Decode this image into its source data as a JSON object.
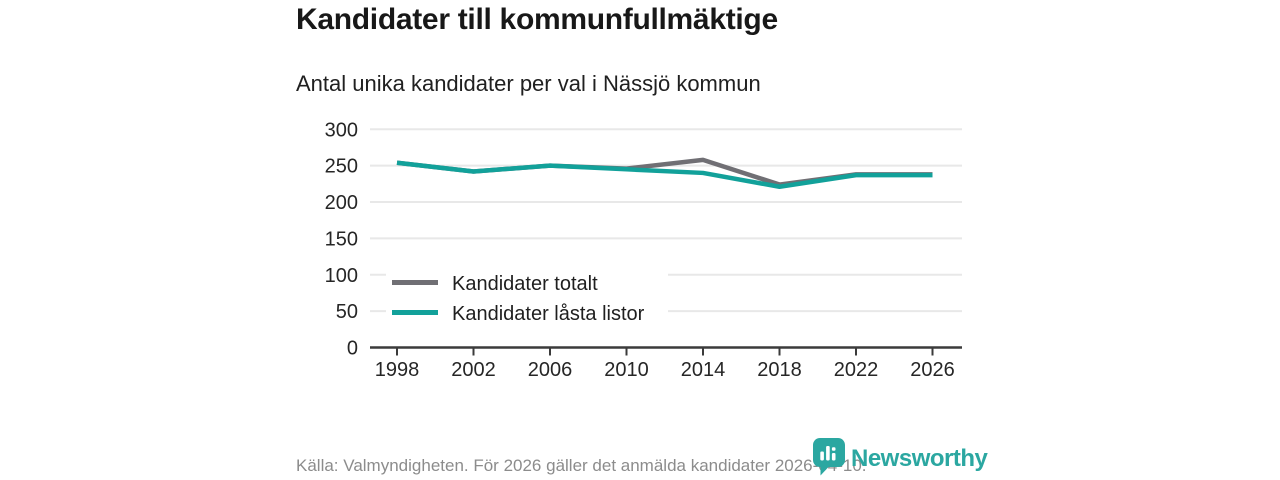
{
  "chart_data": {
    "type": "line",
    "title": "Kandidater till kommunfullmäktige",
    "subtitle": "Antal unika kandidater per val i Nässjö kommun",
    "categories": [
      "1998",
      "2002",
      "2006",
      "2010",
      "2014",
      "2018",
      "2022",
      "2026"
    ],
    "series": [
      {
        "name": "Kandidater totalt",
        "color": "#706f74",
        "values": [
          254,
          242,
          250,
          246,
          258,
          224,
          238,
          238
        ]
      },
      {
        "name": "Kandidater låsta listor",
        "color": "#12a19a",
        "values": [
          254,
          242,
          250,
          245,
          240,
          221,
          237,
          237
        ]
      }
    ],
    "ylim": [
      0,
      300
    ],
    "y_ticks": [
      0,
      50,
      100,
      150,
      200,
      250,
      300
    ],
    "grid": "horizontal",
    "legend_position": "inside-left"
  },
  "footer": {
    "source_text": "Källa: Valmyndigheten. För 2026 gäller det anmälda kandidater 2026-04-10.",
    "logo": {
      "text": "Newsworthy",
      "icon": "speech-bubble-bar-chart",
      "color": "#2ba7a1"
    }
  },
  "colors": {
    "grid": "#e8e8e8",
    "axis": "#3b3b3b",
    "tick_label": "#262626",
    "legend_text": "#1f1f1f",
    "legend_background": "#ffffff"
  }
}
